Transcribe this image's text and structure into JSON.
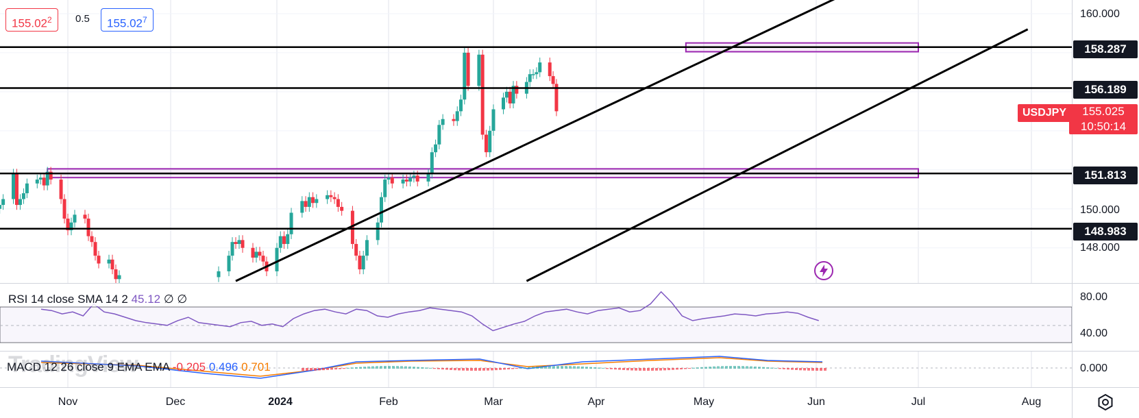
{
  "header": {
    "bid": "155.022",
    "bid_main": "155.02",
    "bid_pip": "2",
    "spread": "0.5",
    "ask": "155.027",
    "ask_main": "155.02",
    "ask_pip": "7"
  },
  "watermark": "TradingView",
  "rsi_legend": {
    "label": "RSI 14 close SMA 14 2",
    "value": "45.12",
    "extra1": "∅",
    "extra2": "∅"
  },
  "macd_legend": {
    "label": "MACD 12 26 close 9 EMA EMA",
    "hist": "-0.205",
    "macd": "0.496",
    "signal": "0.701"
  },
  "symbol_tag": "USDJPY",
  "last_price": {
    "price": "155.025",
    "countdown": "10:50:14"
  },
  "colors": {
    "up": "#26a69a",
    "down": "#f23645",
    "rsi": "#7e57c2",
    "macd": "#2962ff",
    "signal": "#f57c00",
    "zone": "#9c27b0"
  },
  "icons": [
    "lightning-icon",
    "settings-icon"
  ],
  "chart_data": {
    "type": "candlestick",
    "symbol": "USDJPY",
    "x_ticks": [
      "Nov",
      "Dec",
      "2024",
      "Feb",
      "Mar",
      "Apr",
      "May",
      "Jun",
      "Jul",
      "Aug"
    ],
    "y_ticks": [
      "160.000",
      "150.000",
      "148.000"
    ],
    "ylim": [
      146.2,
      160.7
    ],
    "horizontal_levels": [
      {
        "price": 158.287,
        "label": "158.287"
      },
      {
        "price": 156.189,
        "label": "156.189"
      },
      {
        "price": 151.813,
        "label": "151.813"
      },
      {
        "price": 148.983,
        "label": "148.983"
      }
    ],
    "resistance_zones": [
      {
        "from_date": "2024-04-26",
        "to_date": "2024-07-01",
        "low": 158.05,
        "high": 158.5
      },
      {
        "from_date": "2023-10-26",
        "to_date": "2024-07-01",
        "low": 151.6,
        "high": 152.05
      }
    ],
    "trend_channel": [
      {
        "from": [
          "2023-12-20",
          146.3
        ],
        "to": [
          "2024-06-07",
          160.8
        ]
      },
      {
        "from": [
          "2024-03-11",
          146.3
        ],
        "to": [
          "2024-07-31",
          159.2
        ]
      }
    ],
    "candles_close": [
      149.8,
      149.5,
      149.9,
      149.7,
      149.6,
      150.0,
      150.1,
      150.0,
      150.2,
      150.5,
      151.8,
      150.2,
      150.5,
      150.8,
      151.3,
      151.5,
      151.6,
      151.2,
      151.9,
      151.5,
      150.5,
      149.5,
      148.9,
      149.3,
      149.7,
      149.5,
      148.6,
      148.3,
      147.6,
      147.2,
      147.4,
      146.9,
      146.4,
      146.6
    ],
    "candles_close_2": [
      146.8,
      147.6,
      148.3,
      148.2,
      148.4,
      148.0,
      147.5,
      147.8,
      147.6,
      147.3,
      146.8,
      148.0,
      148.6,
      148.2,
      148.7,
      149.8,
      150.4,
      150.1,
      150.6,
      150.3,
      150.5,
      150.7,
      150.6,
      150.5,
      150.1,
      149.9,
      148.2,
      147.6,
      146.9,
      147.6,
      148.4,
      149.3,
      150.6,
      151.5,
      151.6,
      151.3,
      151.5,
      151.4,
      151.6,
      151.7,
      151.4,
      151.8,
      152.9,
      153.3,
      154.3,
      154.6,
      154.5,
      155.0,
      155.6,
      158.0,
      156.3,
      157.9,
      153.8,
      152.9,
      154.0,
      155.1,
      155.7,
      156.0,
      155.4,
      156.3,
      155.9,
      156.5,
      156.9,
      156.9,
      157.0,
      157.5,
      156.8,
      156.4,
      155.0
    ]
  }
}
